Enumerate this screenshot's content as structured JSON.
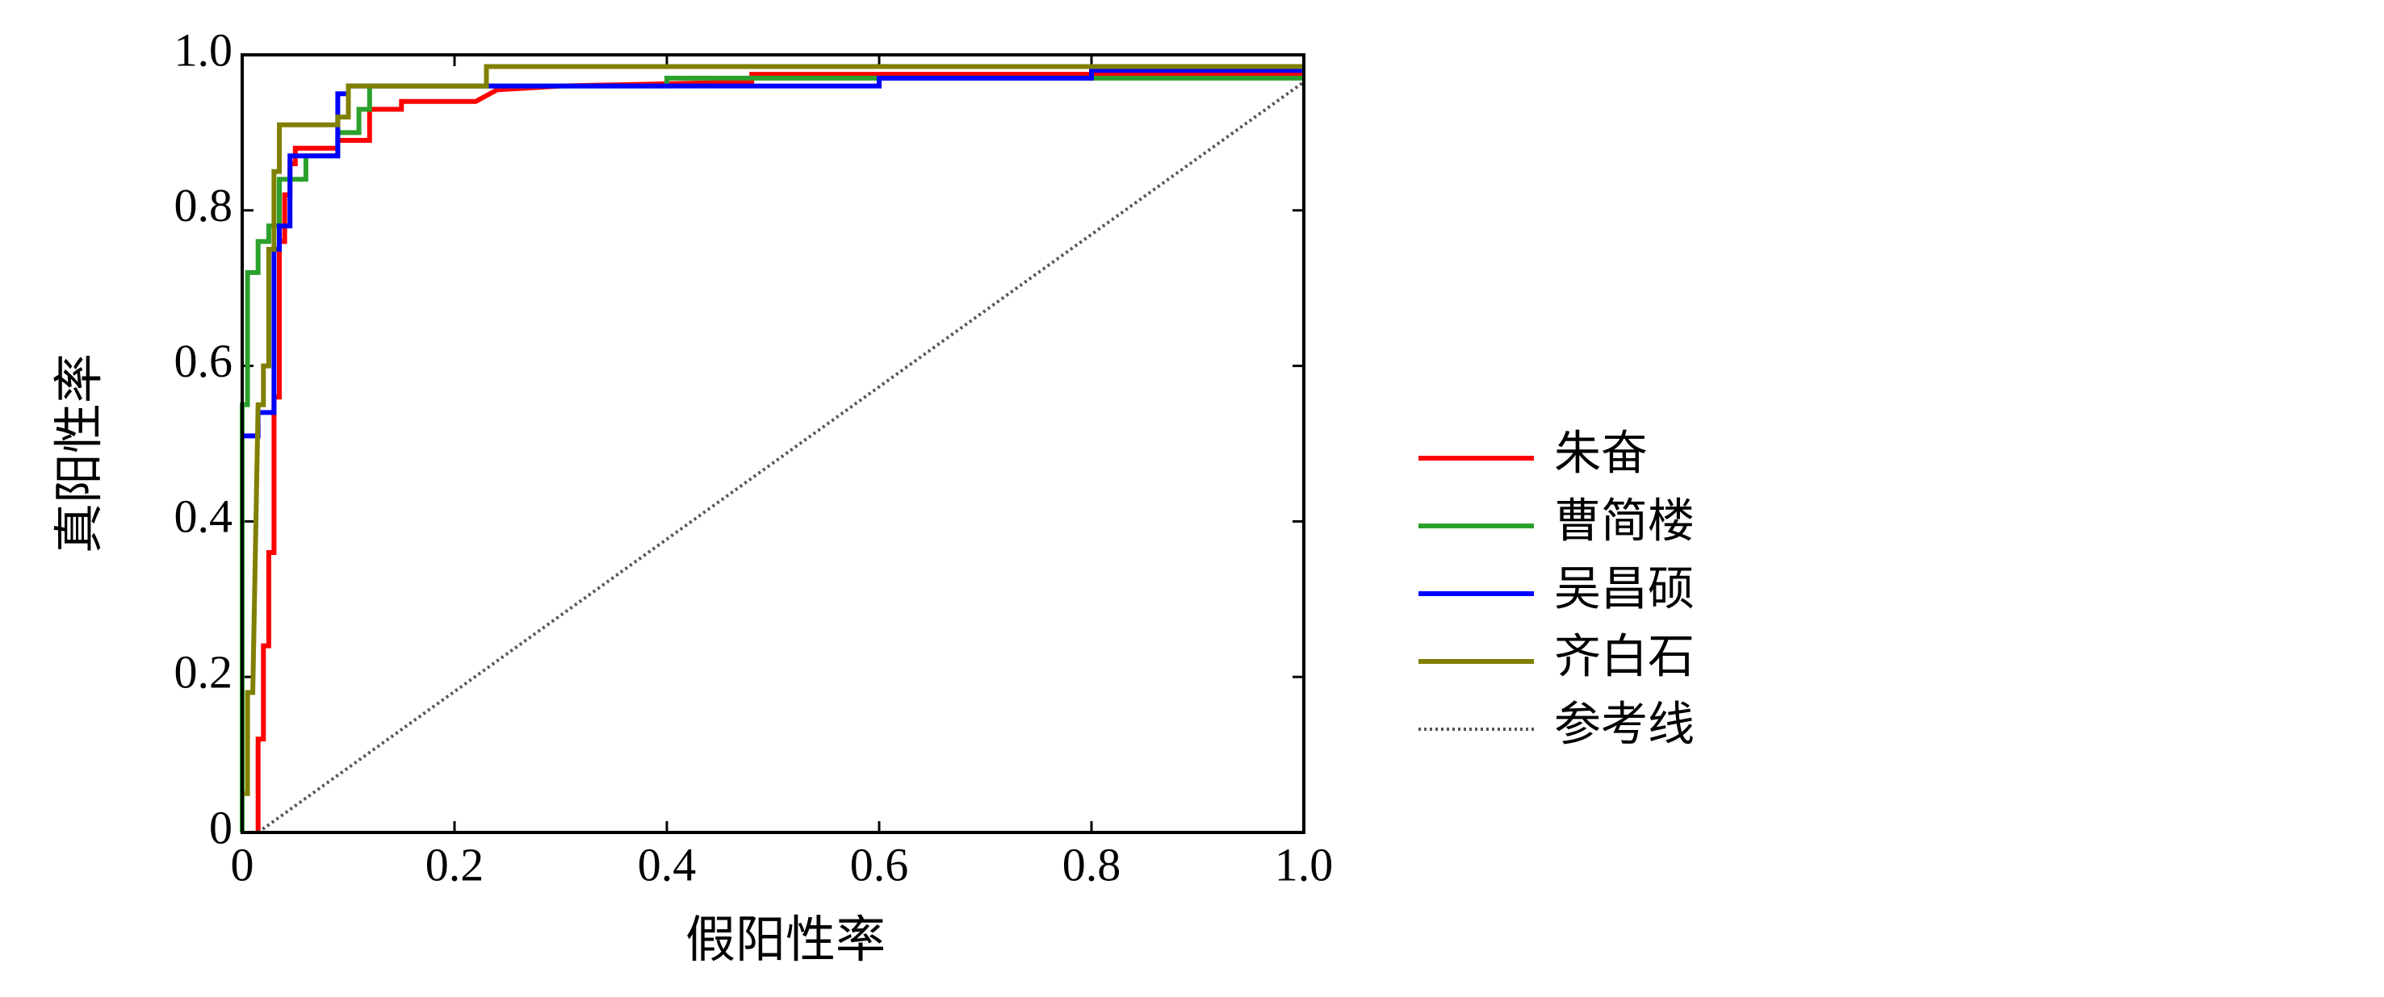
{
  "chart_data": {
    "type": "line",
    "x_label": "假阳性率",
    "y_label": "真阳性率",
    "xlim": [
      0,
      1
    ],
    "ylim": [
      0,
      1
    ],
    "xticks": [
      0,
      0.2,
      0.4,
      0.6,
      0.8,
      {
        "value": 1,
        "label": "1.0"
      }
    ],
    "yticks": [
      0,
      0.2,
      0.4,
      0.6,
      0.8,
      {
        "value": 1,
        "label": "1.0"
      }
    ],
    "legend": "right",
    "series": [
      {
        "name": "朱奋",
        "color": "#ff0000",
        "x": [
          0.015,
          0.015,
          0.02,
          0.02,
          0.025,
          0.025,
          0.03,
          0.03,
          0.035,
          0.035,
          0.04,
          0.04,
          0.045,
          0.045,
          0.05,
          0.05,
          0.09,
          0.09,
          0.12,
          0.12,
          0.15,
          0.15,
          0.22,
          0.24,
          0.3,
          0.48,
          0.48,
          1
        ],
        "values": [
          0,
          0.12,
          0.12,
          0.24,
          0.24,
          0.36,
          0.36,
          0.56,
          0.56,
          0.76,
          0.76,
          0.82,
          0.82,
          0.86,
          0.86,
          0.88,
          0.88,
          0.89,
          0.89,
          0.93,
          0.93,
          0.94,
          0.94,
          0.955,
          0.96,
          0.965,
          0.975,
          0.975
        ]
      },
      {
        "name": "曹简楼",
        "color": "#2ca02c",
        "x": [
          0,
          0,
          0.005,
          0.005,
          0.015,
          0.015,
          0.025,
          0.025,
          0.035,
          0.035,
          0.06,
          0.06,
          0.09,
          0.09,
          0.11,
          0.11,
          0.12,
          0.12,
          0.4,
          0.4,
          1
        ],
        "values": [
          0,
          0.55,
          0.55,
          0.72,
          0.72,
          0.76,
          0.76,
          0.78,
          0.78,
          0.84,
          0.84,
          0.87,
          0.87,
          0.9,
          0.9,
          0.93,
          0.93,
          0.96,
          0.96,
          0.97,
          0.97
        ]
      },
      {
        "name": "吴昌硕",
        "color": "#0000ff",
        "x": [
          0,
          0.015,
          0.015,
          0.03,
          0.03,
          0.035,
          0.035,
          0.045,
          0.045,
          0.09,
          0.09,
          0.1,
          0.1,
          0.6,
          0.6,
          0.8,
          0.8,
          1
        ],
        "values": [
          0.51,
          0.51,
          0.54,
          0.54,
          0.75,
          0.75,
          0.78,
          0.78,
          0.87,
          0.87,
          0.95,
          0.95,
          0.96,
          0.96,
          0.97,
          0.97,
          0.98,
          0.98
        ]
      },
      {
        "name": "齐白石",
        "color": "#808000",
        "x": [
          0,
          0.005,
          0.005,
          0.01,
          0.015,
          0.02,
          0.02,
          0.025,
          0.025,
          0.03,
          0.03,
          0.035,
          0.035,
          0.09,
          0.09,
          0.1,
          0.1,
          0.23,
          0.23,
          1
        ],
        "values": [
          0.05,
          0.05,
          0.18,
          0.18,
          0.55,
          0.55,
          0.6,
          0.6,
          0.75,
          0.75,
          0.85,
          0.85,
          0.91,
          0.91,
          0.92,
          0.92,
          0.96,
          0.96,
          0.985,
          0.985
        ]
      },
      {
        "name": "参考线",
        "color": "#555555",
        "linestyle": "dotted",
        "x": [
          0.015,
          1
        ],
        "values": [
          0,
          0.965
        ]
      }
    ]
  }
}
